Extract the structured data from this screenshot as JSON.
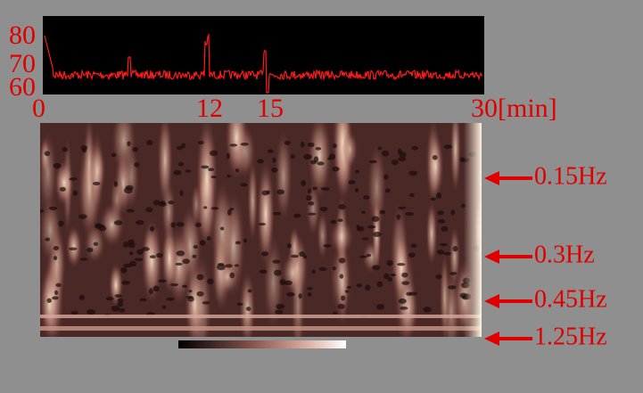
{
  "trace": {
    "y_labels": [
      "80",
      "70",
      "60"
    ],
    "x_labels": [
      "0",
      "12",
      "15",
      "30[min]"
    ]
  },
  "scalogram": {
    "frequency_markers": [
      "0.15Hz",
      "0.3Hz",
      "0.45Hz",
      "1.25Hz"
    ]
  }
}
